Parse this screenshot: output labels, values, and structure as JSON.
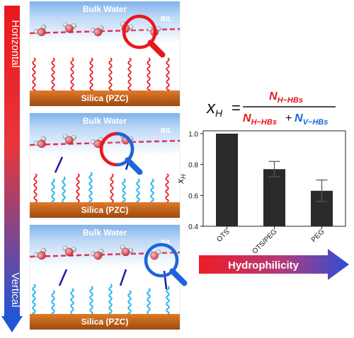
{
  "side_arrow": {
    "top_label": "Horizontal",
    "bottom_label": "Vertical"
  },
  "panels": [
    {
      "water_label": "Bulk Water",
      "interface_label": "BIL",
      "substrate_label": "Silica (PZC)"
    },
    {
      "water_label": "Bulk Water",
      "interface_label": "BIL",
      "substrate_label": "Silica (PZC)"
    },
    {
      "water_label": "Bulk Water",
      "interface_label": "BIL",
      "substrate_label": "Silica (PZC)"
    }
  ],
  "formula": {
    "lhs_symbol": "x",
    "lhs_sub": "H",
    "equals": "=",
    "numerator_symbol": "N",
    "numerator_sub": "H−HBs",
    "denominator_a_symbol": "N",
    "denominator_a_sub": "H−HBs",
    "plus": "+",
    "denominator_b_symbol": "N",
    "denominator_b_sub": "V−HBs"
  },
  "colors": {
    "horizontal": "#e8171d",
    "vertical": "#1f64d8",
    "chain_red": "#e51d22",
    "chain_cyan": "#31b7ec",
    "hbond_blue": "#1a1aa8",
    "silica": "#c9651a",
    "bar": "#2a2a2a"
  },
  "hydrophilicity_arrow": {
    "label": "Hydrophilicity"
  },
  "chart_data": {
    "type": "bar",
    "categories": [
      "OTS",
      "OTS/PEG",
      "PEG"
    ],
    "values": [
      1.0,
      0.77,
      0.63
    ],
    "error": [
      0.0,
      0.05,
      0.07
    ],
    "ylabel_symbol": "x",
    "ylabel_sub": "H",
    "ylim": [
      0.4,
      1.0
    ],
    "yticks": [
      "0.4",
      "0.6",
      "0.8",
      "1.0"
    ],
    "ytick_values": [
      0.4,
      0.6,
      0.8,
      1.0
    ],
    "grid": false
  }
}
